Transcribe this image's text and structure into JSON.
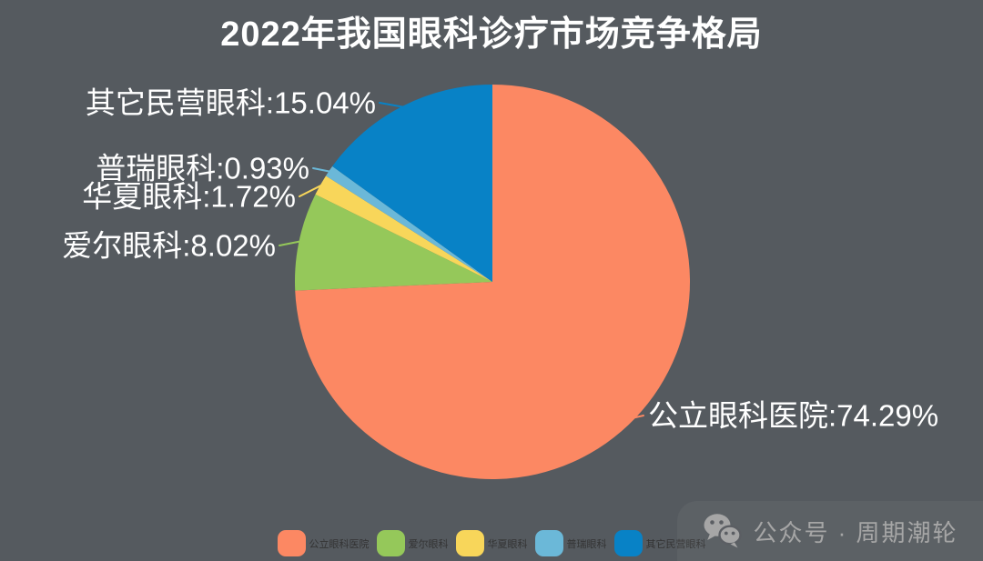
{
  "title": "2022年我国眼科诊疗市场竞争格局",
  "chart_data": {
    "type": "pie",
    "title": "2022年我国眼科诊疗市场竞争格局",
    "categories": [
      "公立眼科医院",
      "爱尔眼科",
      "华夏眼科",
      "普瑞眼科",
      "其它民营眼科"
    ],
    "values": [
      74.29,
      8.02,
      1.72,
      0.93,
      15.04
    ],
    "unit": "%",
    "colors": [
      "#fc8863",
      "#95c85a",
      "#f8d65a",
      "#6bb8d8",
      "#0882c6"
    ],
    "slice_labels": [
      "公立眼科医院:74.29%",
      "爱尔眼科:8.02%",
      "华夏眼科:1.72%",
      "普瑞眼科:0.93%",
      "其它民营眼科:15.04%"
    ],
    "legend_entries": [
      "公立眼科医院",
      "爱尔眼科",
      "华夏眼科",
      "普瑞眼科",
      "其它民营眼科"
    ],
    "legend_position": "bottom",
    "start_angle": "top",
    "direction": "clockwise"
  },
  "watermark": {
    "icon": "wechat-icon",
    "text": "公众号 · 周期潮轮"
  },
  "theme": {
    "background": "#555a5f",
    "title_color": "#ffffff",
    "label_color": "#ffffff",
    "legend_text_color": "#333333",
    "watermark_color": "#a6a6a6"
  }
}
